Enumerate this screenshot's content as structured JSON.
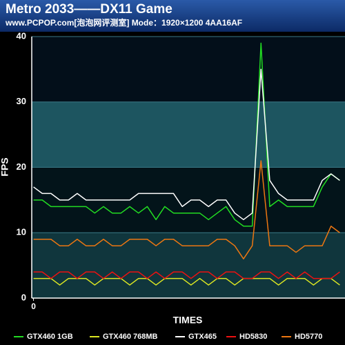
{
  "chart_data": {
    "type": "line",
    "title": "Metro 2033——DX11 Game",
    "subtitle": "www.PCPOP.com[泡泡网评测室] Mode：1920×1200 4AA16AF",
    "y_label": "FPS",
    "x_label": "TIMES",
    "x": [
      0,
      1,
      2,
      3,
      4,
      5,
      6,
      7,
      8,
      9,
      10,
      11,
      12,
      13,
      14,
      15,
      16,
      17,
      18,
      19,
      20,
      21,
      22,
      23,
      24,
      25,
      26,
      27,
      28,
      29,
      30,
      31,
      32,
      33,
      34,
      35
    ],
    "xlim": [
      -0.2,
      35.6
    ],
    "xticks": [
      0
    ],
    "ylim": [
      0,
      40
    ],
    "yticks": [
      0,
      10,
      20,
      30,
      40
    ],
    "grid": true,
    "series": [
      {
        "name": "GTX460 1GB",
        "color": "#22dd22",
        "values": [
          15,
          15,
          14,
          14,
          14,
          14,
          14,
          13,
          14,
          13,
          13,
          14,
          13,
          14,
          12,
          14,
          13,
          13,
          13,
          13,
          12,
          13,
          14,
          12,
          11,
          11,
          39,
          14,
          15,
          14,
          14,
          14,
          14,
          17,
          19,
          18
        ]
      },
      {
        "name": "GTX460 768MB",
        "color": "#dde822",
        "values": [
          3,
          3,
          3,
          2,
          3,
          3,
          3,
          2,
          3,
          3,
          3,
          2,
          3,
          3,
          2,
          3,
          3,
          3,
          2,
          3,
          2,
          3,
          3,
          2,
          3,
          3,
          3,
          3,
          2,
          3,
          3,
          3,
          2,
          3,
          3,
          2
        ]
      },
      {
        "name": "GTX465",
        "color": "#ffffff",
        "values": [
          17,
          16,
          16,
          15,
          15,
          16,
          15,
          15,
          15,
          15,
          15,
          15,
          16,
          16,
          16,
          16,
          16,
          14,
          15,
          15,
          14,
          15,
          15,
          13,
          12,
          13,
          35,
          18,
          16,
          15,
          15,
          15,
          15,
          18,
          19,
          18
        ]
      },
      {
        "name": "HD5830",
        "color": "#ee1111",
        "values": [
          4,
          4,
          3,
          4,
          4,
          3,
          4,
          4,
          3,
          4,
          3,
          4,
          4,
          3,
          4,
          3,
          4,
          4,
          3,
          4,
          4,
          3,
          4,
          4,
          3,
          3,
          4,
          4,
          3,
          4,
          3,
          4,
          3,
          3,
          3,
          4
        ]
      },
      {
        "name": "HD5770",
        "color": "#ee7711",
        "values": [
          9,
          9,
          9,
          8,
          8,
          9,
          8,
          8,
          9,
          8,
          8,
          9,
          9,
          9,
          8,
          9,
          9,
          8,
          8,
          8,
          8,
          9,
          9,
          8,
          6,
          8,
          21,
          8,
          8,
          8,
          7,
          8,
          8,
          8,
          11,
          10
        ]
      }
    ]
  }
}
